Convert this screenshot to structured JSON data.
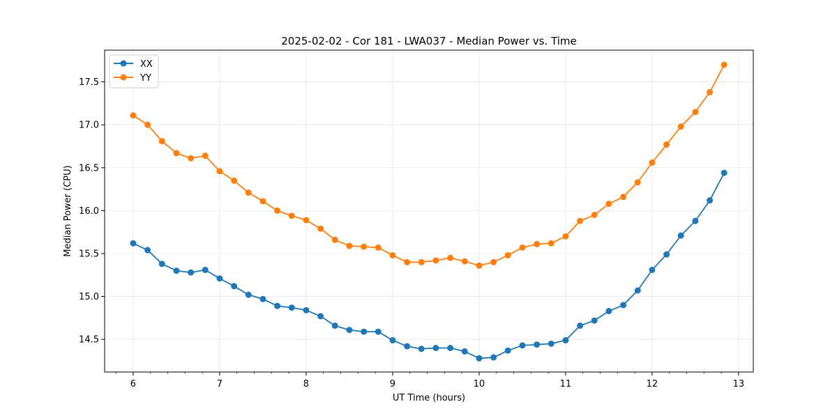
{
  "chart_data": {
    "type": "line",
    "title": "2025-02-02 - Cor 181 - LWA037 - Median Power vs. Time",
    "xlabel": "UT Time (hours)",
    "ylabel": "Median Power (CPU)",
    "xlim": [
      5.67,
      13.17
    ],
    "ylim": [
      14.12,
      17.87
    ],
    "xticks": [
      6,
      7,
      8,
      9,
      10,
      11,
      12,
      13
    ],
    "yticks": [
      14.5,
      15.0,
      15.5,
      16.0,
      16.5,
      17.0,
      17.5
    ],
    "ytick_labels": [
      "14.5",
      "15.0",
      "15.5",
      "16.0",
      "16.5",
      "17.0",
      "17.5"
    ],
    "grid": true,
    "legend_position": "top-left",
    "x": [
      6.0,
      6.167,
      6.333,
      6.5,
      6.667,
      6.833,
      7.0,
      7.167,
      7.333,
      7.5,
      7.667,
      7.833,
      8.0,
      8.167,
      8.333,
      8.5,
      8.667,
      8.833,
      9.0,
      9.167,
      9.333,
      9.5,
      9.667,
      9.833,
      10.0,
      10.167,
      10.333,
      10.5,
      10.667,
      10.833,
      11.0,
      11.167,
      11.333,
      11.5,
      11.667,
      11.833,
      12.0,
      12.167,
      12.333,
      12.5,
      12.667,
      12.833
    ],
    "series": [
      {
        "name": "XX",
        "color": "#1f77b4",
        "values": [
          15.62,
          15.54,
          15.38,
          15.3,
          15.28,
          15.31,
          15.21,
          15.12,
          15.02,
          14.97,
          14.89,
          14.87,
          14.84,
          14.77,
          14.66,
          14.61,
          14.59,
          14.59,
          14.49,
          14.42,
          14.39,
          14.4,
          14.4,
          14.36,
          14.28,
          14.29,
          14.37,
          14.43,
          14.44,
          14.45,
          14.49,
          14.66,
          14.72,
          14.83,
          14.9,
          15.07,
          15.31,
          15.49,
          15.71,
          15.88,
          16.12,
          16.44
        ]
      },
      {
        "name": "YY",
        "color": "#ff7f0e",
        "values": [
          17.11,
          17.0,
          16.81,
          16.67,
          16.61,
          16.64,
          16.46,
          16.35,
          16.21,
          16.11,
          16.0,
          15.94,
          15.89,
          15.79,
          15.66,
          15.59,
          15.58,
          15.57,
          15.48,
          15.4,
          15.4,
          15.42,
          15.45,
          15.41,
          15.36,
          15.4,
          15.48,
          15.57,
          15.61,
          15.62,
          15.7,
          15.88,
          15.95,
          16.08,
          16.16,
          16.33,
          16.56,
          16.77,
          16.98,
          17.15,
          17.38,
          17.7
        ]
      }
    ]
  }
}
